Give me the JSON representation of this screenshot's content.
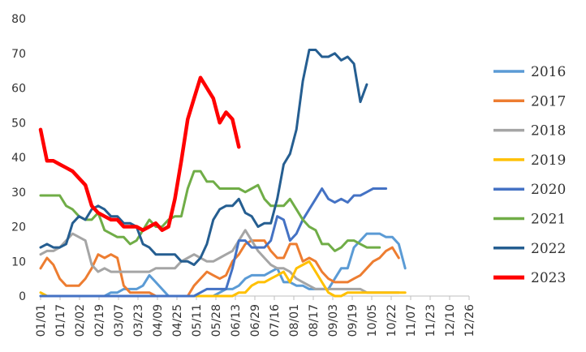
{
  "chart_data": {
    "type": "line",
    "title": "",
    "xlabel": "",
    "ylabel": "",
    "ylim": [
      0,
      80
    ],
    "yticks": [
      0,
      10,
      20,
      30,
      40,
      50,
      60,
      70,
      80
    ],
    "grid": false,
    "legend_position": "right",
    "x_tick_labels": [
      "01/01",
      "01/17",
      "02/02",
      "02/19",
      "03/07",
      "03/23",
      "04/09",
      "04/25",
      "05/11",
      "05/28",
      "06/13",
      "06/29",
      "07/16",
      "08/01",
      "08/17",
      "09/03",
      "09/19",
      "10/05",
      "10/22",
      "11/07",
      "11/23",
      "12/10",
      "12/26"
    ],
    "weeks": 34,
    "series": [
      {
        "name": "2016",
        "color": "#5b9bd5",
        "values": [
          0,
          0,
          0,
          0,
          0,
          0,
          0,
          0,
          0,
          0,
          0,
          1,
          1,
          2,
          2,
          2,
          3,
          6,
          4,
          2,
          0,
          0,
          0,
          0,
          0,
          0,
          0,
          0,
          1,
          2,
          2,
          3,
          5,
          6,
          6,
          6,
          7,
          8,
          4,
          4,
          3,
          3,
          2,
          2,
          2,
          2,
          5,
          8,
          8,
          14,
          16,
          18,
          18,
          18,
          17,
          17,
          15,
          8
        ]
      },
      {
        "name": "2017",
        "color": "#ed7d31",
        "values": [
          8,
          11,
          9,
          5,
          3,
          3,
          3,
          5,
          8,
          12,
          11,
          12,
          11,
          3,
          1,
          1,
          1,
          1,
          0,
          0,
          0,
          0,
          0,
          0,
          3,
          5,
          7,
          6,
          5,
          6,
          10,
          12,
          15,
          16,
          16,
          16,
          13,
          11,
          11,
          15,
          15,
          10,
          11,
          10,
          7,
          5,
          4,
          4,
          4,
          5,
          6,
          8,
          10,
          11,
          13,
          14,
          11
        ]
      },
      {
        "name": "2018",
        "color": "#a5a5a5",
        "values": [
          12,
          13,
          13,
          14,
          16,
          18,
          17,
          16,
          9,
          7,
          8,
          7,
          7,
          7,
          7,
          7,
          7,
          7,
          8,
          8,
          8,
          8,
          10,
          11,
          12,
          11,
          10,
          10,
          11,
          12,
          13,
          16,
          19,
          16,
          13,
          11,
          9,
          8,
          8,
          7,
          5,
          4,
          3,
          2,
          2,
          2,
          2,
          2,
          2,
          2,
          2,
          1,
          1,
          1,
          1,
          1,
          1
        ]
      },
      {
        "name": "2019",
        "color": "#ffc000",
        "values": [
          1,
          0,
          0,
          0,
          0,
          0,
          0,
          0,
          0,
          0,
          0,
          0,
          0,
          0,
          0,
          0,
          0,
          0,
          0,
          0,
          0,
          0,
          0,
          0,
          0,
          0,
          0,
          0,
          0,
          0,
          0,
          1,
          1,
          3,
          4,
          4,
          5,
          6,
          7,
          4,
          8,
          9,
          10,
          7,
          4,
          1,
          0,
          0,
          1,
          1,
          1,
          1,
          1,
          1,
          1,
          1,
          1,
          1
        ]
      },
      {
        "name": "2020",
        "color": "#4472c4",
        "values": [
          0,
          0,
          0,
          0,
          0,
          0,
          0,
          0,
          0,
          0,
          0,
          0,
          0,
          0,
          0,
          0,
          0,
          0,
          0,
          0,
          0,
          0,
          0,
          0,
          0,
          1,
          2,
          2,
          2,
          2,
          8,
          16,
          16,
          14,
          14,
          14,
          16,
          23,
          22,
          16,
          18,
          22,
          25,
          28,
          31,
          28,
          27,
          28,
          27,
          29,
          29,
          30,
          31,
          31,
          31
        ]
      },
      {
        "name": "2021",
        "color": "#70ad47",
        "values": [
          29,
          29,
          29,
          29,
          26,
          25,
          23,
          22,
          22,
          24,
          19,
          18,
          17,
          17,
          15,
          16,
          19,
          22,
          20,
          20,
          22,
          23,
          23,
          31,
          36,
          36,
          33,
          33,
          31,
          31,
          31,
          31,
          30,
          31,
          32,
          28,
          26,
          26,
          26,
          28,
          25,
          22,
          20,
          19,
          15,
          15,
          13,
          14,
          16,
          16,
          15,
          14,
          14,
          14
        ]
      },
      {
        "name": "2022",
        "color": "#255e91",
        "values": [
          14,
          15,
          14,
          14,
          15,
          21,
          23,
          22,
          25,
          26,
          25,
          23,
          23,
          21,
          21,
          20,
          15,
          14,
          12,
          12,
          12,
          12,
          10,
          10,
          9,
          11,
          15,
          22,
          25,
          26,
          26,
          28,
          24,
          23,
          20,
          21,
          21,
          28,
          38,
          41,
          48,
          62,
          71,
          71,
          69,
          69,
          70,
          68,
          69,
          67,
          56,
          61
        ]
      },
      {
        "name": "2023",
        "color": "#ff0000",
        "values": [
          48,
          39,
          39,
          38,
          37,
          36,
          34,
          32,
          26,
          24,
          23,
          22,
          22,
          20,
          20,
          20,
          19,
          20,
          21,
          19,
          20,
          28,
          39,
          51,
          57,
          63,
          60,
          57,
          50,
          53,
          51,
          43
        ]
      }
    ]
  }
}
